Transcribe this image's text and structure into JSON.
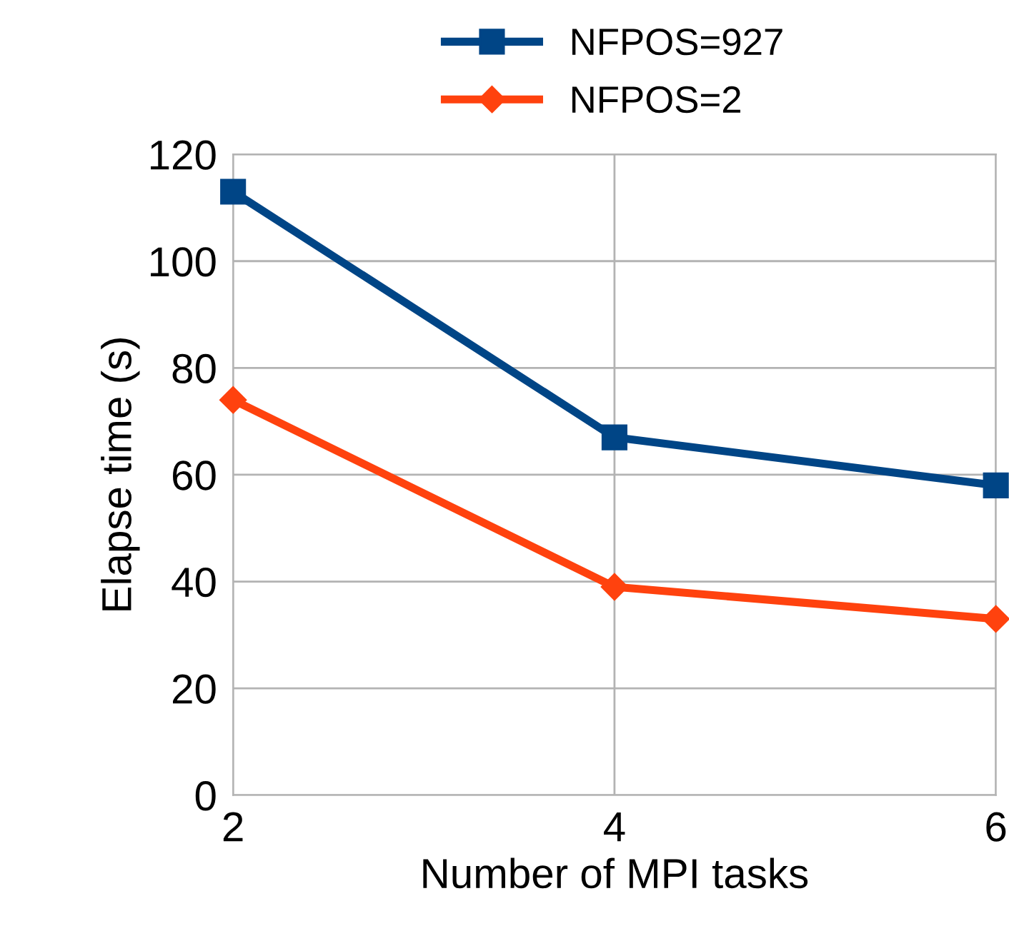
{
  "chart_data": {
    "type": "line",
    "xlabel": "Number of MPI tasks",
    "ylabel": "Elapse time (s)",
    "x": [
      2,
      4,
      6
    ],
    "series": [
      {
        "name": "NFPOS=927",
        "color": "#004586",
        "values": [
          113,
          67,
          58
        ],
        "marker": "square"
      },
      {
        "name": "NFPOS=2",
        "color": "#ff420e",
        "values": [
          74,
          39,
          33
        ],
        "marker": "diamond"
      }
    ],
    "xlim": [
      2,
      6
    ],
    "xticks": [
      2,
      4,
      6
    ],
    "ylim": [
      0,
      120
    ],
    "yticks": [
      0,
      20,
      40,
      60,
      80,
      100,
      120
    ],
    "grid": true,
    "legend": "top",
    "line_style": "solid"
  }
}
